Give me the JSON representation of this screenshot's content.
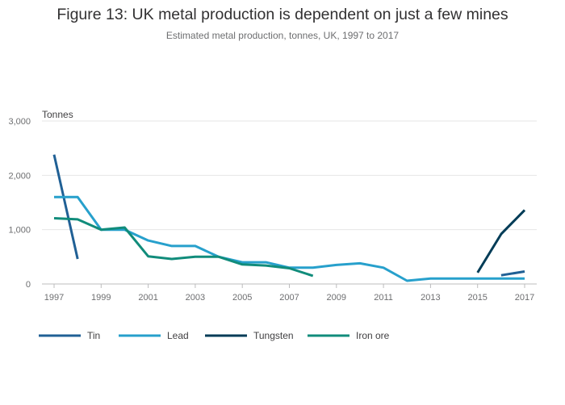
{
  "chart_data": {
    "type": "line",
    "title": "Figure 13: UK metal production is dependent on just a few mines",
    "subtitle": "Estimated metal production, tonnes, UK, 1997 to 2017",
    "ylabel": "Tonnes",
    "xlabel": "",
    "xlim": [
      1997,
      2017
    ],
    "ylim": [
      0,
      3000
    ],
    "yticks": [
      0,
      1000,
      2000,
      3000
    ],
    "ytick_labels": [
      "0",
      "1,000",
      "2,000",
      "3,000"
    ],
    "xticks": [
      1997,
      1999,
      2001,
      2003,
      2005,
      2007,
      2009,
      2011,
      2013,
      2015,
      2017
    ],
    "xtick_labels": [
      "1997",
      "1999",
      "2001",
      "2003",
      "2005",
      "2007",
      "2009",
      "2011",
      "2013",
      "2015",
      "2017"
    ],
    "grid": true,
    "legend_position": "bottom-left",
    "series": [
      {
        "name": "Tin",
        "color": "#206095",
        "points": [
          [
            1997,
            2380
          ],
          [
            1998,
            460
          ],
          [
            2016,
            160
          ],
          [
            2017,
            230
          ]
        ],
        "segments": [
          [
            1997,
            1998
          ],
          [
            2016,
            2017
          ]
        ]
      },
      {
        "name": "Lead",
        "color": "#27a0cc",
        "points": [
          [
            1997,
            1600
          ],
          [
            1998,
            1600
          ],
          [
            1999,
            1000
          ],
          [
            2000,
            1000
          ],
          [
            2001,
            800
          ],
          [
            2002,
            700
          ],
          [
            2003,
            700
          ],
          [
            2004,
            500
          ],
          [
            2005,
            400
          ],
          [
            2006,
            400
          ],
          [
            2007,
            300
          ],
          [
            2008,
            300
          ],
          [
            2009,
            350
          ],
          [
            2010,
            380
          ],
          [
            2011,
            300
          ],
          [
            2012,
            60
          ],
          [
            2013,
            100
          ],
          [
            2014,
            100
          ],
          [
            2015,
            100
          ],
          [
            2016,
            100
          ],
          [
            2017,
            100
          ]
        ],
        "segments": [
          [
            1997,
            2017
          ]
        ]
      },
      {
        "name": "Tungsten",
        "color": "#003c57",
        "points": [
          [
            2015,
            210
          ],
          [
            2016,
            920
          ],
          [
            2017,
            1360
          ]
        ],
        "segments": [
          [
            2015,
            2017
          ]
        ]
      },
      {
        "name": "Iron ore",
        "color": "#118c7b",
        "points": [
          [
            1997,
            1210
          ],
          [
            1998,
            1190
          ],
          [
            1999,
            1000
          ],
          [
            2000,
            1040
          ],
          [
            2001,
            510
          ],
          [
            2002,
            460
          ],
          [
            2003,
            500
          ],
          [
            2004,
            500
          ],
          [
            2005,
            360
          ],
          [
            2006,
            340
          ],
          [
            2007,
            290
          ],
          [
            2008,
            150
          ]
        ],
        "segments": [
          [
            1997,
            2008
          ]
        ]
      }
    ]
  }
}
